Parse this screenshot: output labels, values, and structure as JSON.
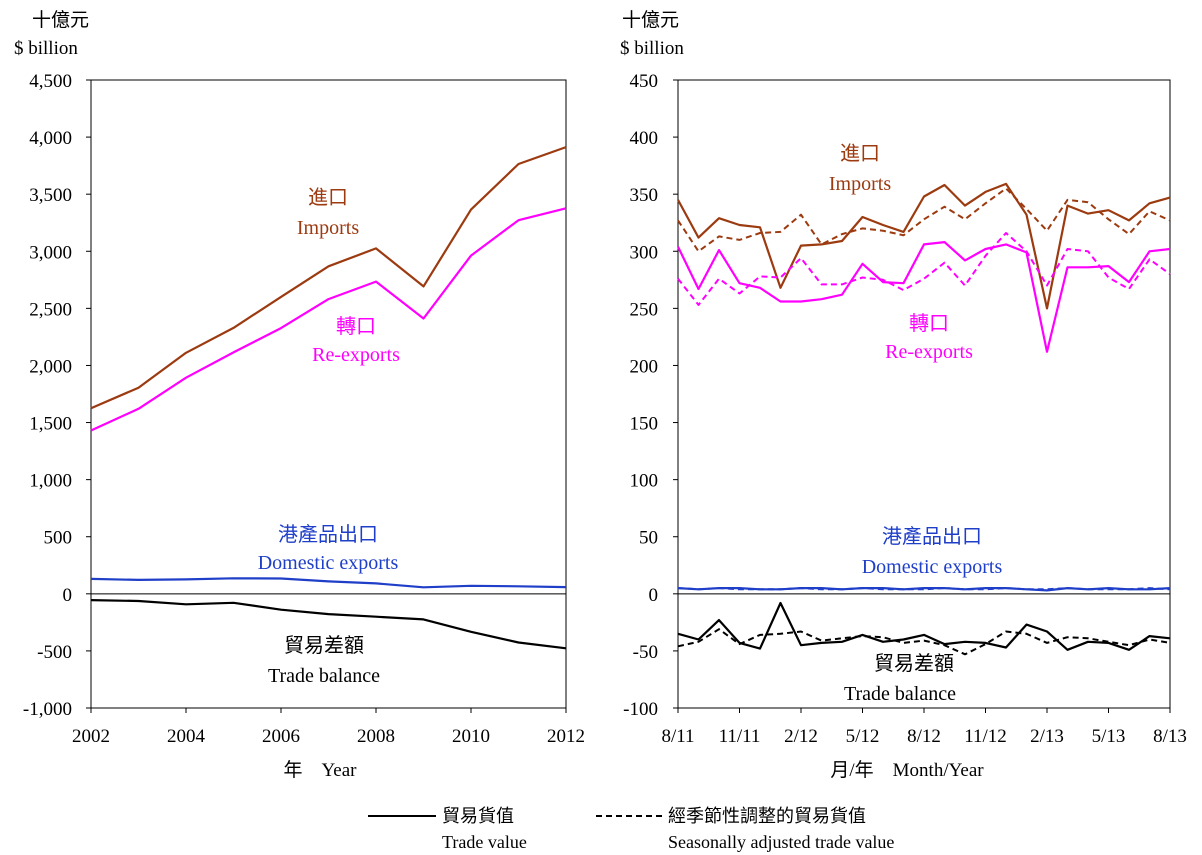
{
  "colors": {
    "imports": "#9c3a10",
    "reexports": "#ff00ff",
    "domestic": "#1f3fc8",
    "balance": "#000000"
  },
  "legend": {
    "solid_zh": "貿易貨值",
    "solid_en": "Trade value",
    "dashed_zh": "經季節性調整的貿易貨值",
    "dashed_en": "Seasonally adjusted trade value"
  },
  "chart_data": [
    {
      "type": "line",
      "unit_zh": "十億元",
      "unit_en": "$ billion",
      "xlabel": "年　Year",
      "ylim": [
        -1000,
        4500
      ],
      "yticks": [
        4500,
        4000,
        3500,
        3000,
        2500,
        2000,
        1500,
        1000,
        500,
        0,
        -500,
        -1000
      ],
      "ytick_labels": [
        "4,500",
        "4,000",
        "3,500",
        "3,000",
        "2,500",
        "2,000",
        "1,500",
        "1,000",
        "500",
        "0",
        "-500",
        "-1,000"
      ],
      "xlim": [
        2002,
        2012
      ],
      "xticks": [
        2002,
        2004,
        2006,
        2008,
        2010,
        2012
      ],
      "xtick_labels": [
        "2002",
        "2004",
        "2006",
        "2008",
        "2010",
        "2012"
      ],
      "x": [
        2002,
        2003,
        2004,
        2005,
        2006,
        2007,
        2008,
        2009,
        2010,
        2011,
        2012
      ],
      "series": [
        {
          "key": "imports",
          "label_zh": "進口",
          "label_en": "Imports",
          "values": [
            1625,
            1805,
            2111,
            2329,
            2600,
            2868,
            3025,
            2692,
            3365,
            3764,
            3912
          ]
        },
        {
          "key": "reexports",
          "label_zh": "轉口",
          "label_en": "Re-exports",
          "values": [
            1430,
            1620,
            1893,
            2114,
            2327,
            2581,
            2734,
            2411,
            2962,
            3272,
            3376
          ]
        },
        {
          "key": "domestic",
          "label_zh": "港產品出口",
          "label_en": "Domestic exports",
          "values": [
            131,
            122,
            126,
            136,
            134,
            109,
            91,
            57,
            70,
            66,
            59
          ]
        },
        {
          "key": "balance",
          "label_zh": "貿易差額",
          "label_en": "Trade balance",
          "values": [
            -55,
            -63,
            -92,
            -79,
            -139,
            -178,
            -200,
            -224,
            -333,
            -426,
            -477
          ]
        }
      ]
    },
    {
      "type": "line",
      "unit_zh": "十億元",
      "unit_en": "$ billion",
      "xlabel": "月/年　Month/Year",
      "ylim": [
        -100,
        450
      ],
      "yticks": [
        450,
        400,
        350,
        300,
        250,
        200,
        150,
        100,
        50,
        0,
        -50,
        -100
      ],
      "ytick_labels": [
        "450",
        "400",
        "350",
        "300",
        "250",
        "200",
        "150",
        "100",
        "50",
        "0",
        "-50",
        "-100"
      ],
      "xlim": [
        0,
        24
      ],
      "xticks": [
        0,
        3,
        6,
        9,
        12,
        15,
        18,
        21,
        24
      ],
      "xtick_labels": [
        "8/11",
        "11/11",
        "2/12",
        "5/12",
        "8/12",
        "11/12",
        "2/13",
        "5/13",
        "8/13"
      ],
      "series": [
        {
          "key": "imports",
          "label_zh": "進口",
          "label_en": "Imports",
          "values": [
            345,
            312,
            329,
            323,
            321,
            268,
            305,
            306,
            309,
            330,
            323,
            317,
            348,
            358,
            340,
            352,
            359,
            332,
            250,
            340,
            333,
            336,
            327,
            342,
            347
          ]
        },
        {
          "key": "imports_sa",
          "dashed": true,
          "values": [
            327,
            300,
            313,
            310,
            316,
            317,
            332,
            306,
            315,
            320,
            318,
            314,
            328,
            339,
            328,
            342,
            355,
            337,
            318,
            345,
            343,
            328,
            315,
            335,
            327
          ]
        },
        {
          "key": "reexports",
          "label_zh": "轉口",
          "label_en": "Re-exports",
          "values": [
            304,
            267,
            301,
            272,
            268,
            256,
            256,
            258,
            262,
            289,
            273,
            272,
            306,
            308,
            292,
            302,
            306,
            299,
            212,
            286,
            286,
            287,
            273,
            300,
            302
          ]
        },
        {
          "key": "reexports_sa",
          "dashed": true,
          "values": [
            276,
            253,
            276,
            263,
            278,
            277,
            294,
            271,
            271,
            277,
            275,
            266,
            276,
            290,
            270,
            296,
            316,
            300,
            270,
            302,
            300,
            277,
            267,
            293,
            280
          ]
        },
        {
          "key": "domestic",
          "label_zh": "港產品出口",
          "label_en": "Domestic exports",
          "values": [
            5,
            4,
            5,
            5,
            4,
            4,
            5,
            5,
            4,
            5,
            5,
            4,
            5,
            5,
            4,
            5,
            5,
            4,
            3,
            5,
            4,
            5,
            4,
            4,
            5
          ]
        },
        {
          "key": "domestic_sa",
          "dashed": true,
          "values": [
            5,
            4,
            5,
            4,
            4,
            4,
            5,
            4,
            4,
            5,
            4,
            4,
            4,
            5,
            4,
            4,
            5,
            4,
            4,
            5,
            4,
            4,
            4,
            5,
            4
          ]
        },
        {
          "key": "balance",
          "label_zh": "貿易差額",
          "label_en": "Trade balance",
          "values": [
            -35,
            -40,
            -23,
            -43,
            -48,
            -8,
            -45,
            -43,
            -42,
            -36,
            -42,
            -40,
            -36,
            -44,
            -42,
            -43,
            -47,
            -27,
            -33,
            -49,
            -42,
            -43,
            -49,
            -37,
            -39
          ]
        },
        {
          "key": "balance_sa",
          "dashed": true,
          "values": [
            -46,
            -42,
            -31,
            -44,
            -36,
            -35,
            -33,
            -41,
            -39,
            -37,
            -38,
            -43,
            -41,
            -45,
            -53,
            -44,
            -33,
            -35,
            -43,
            -38,
            -39,
            -42,
            -45,
            -40,
            -43
          ]
        }
      ]
    }
  ]
}
